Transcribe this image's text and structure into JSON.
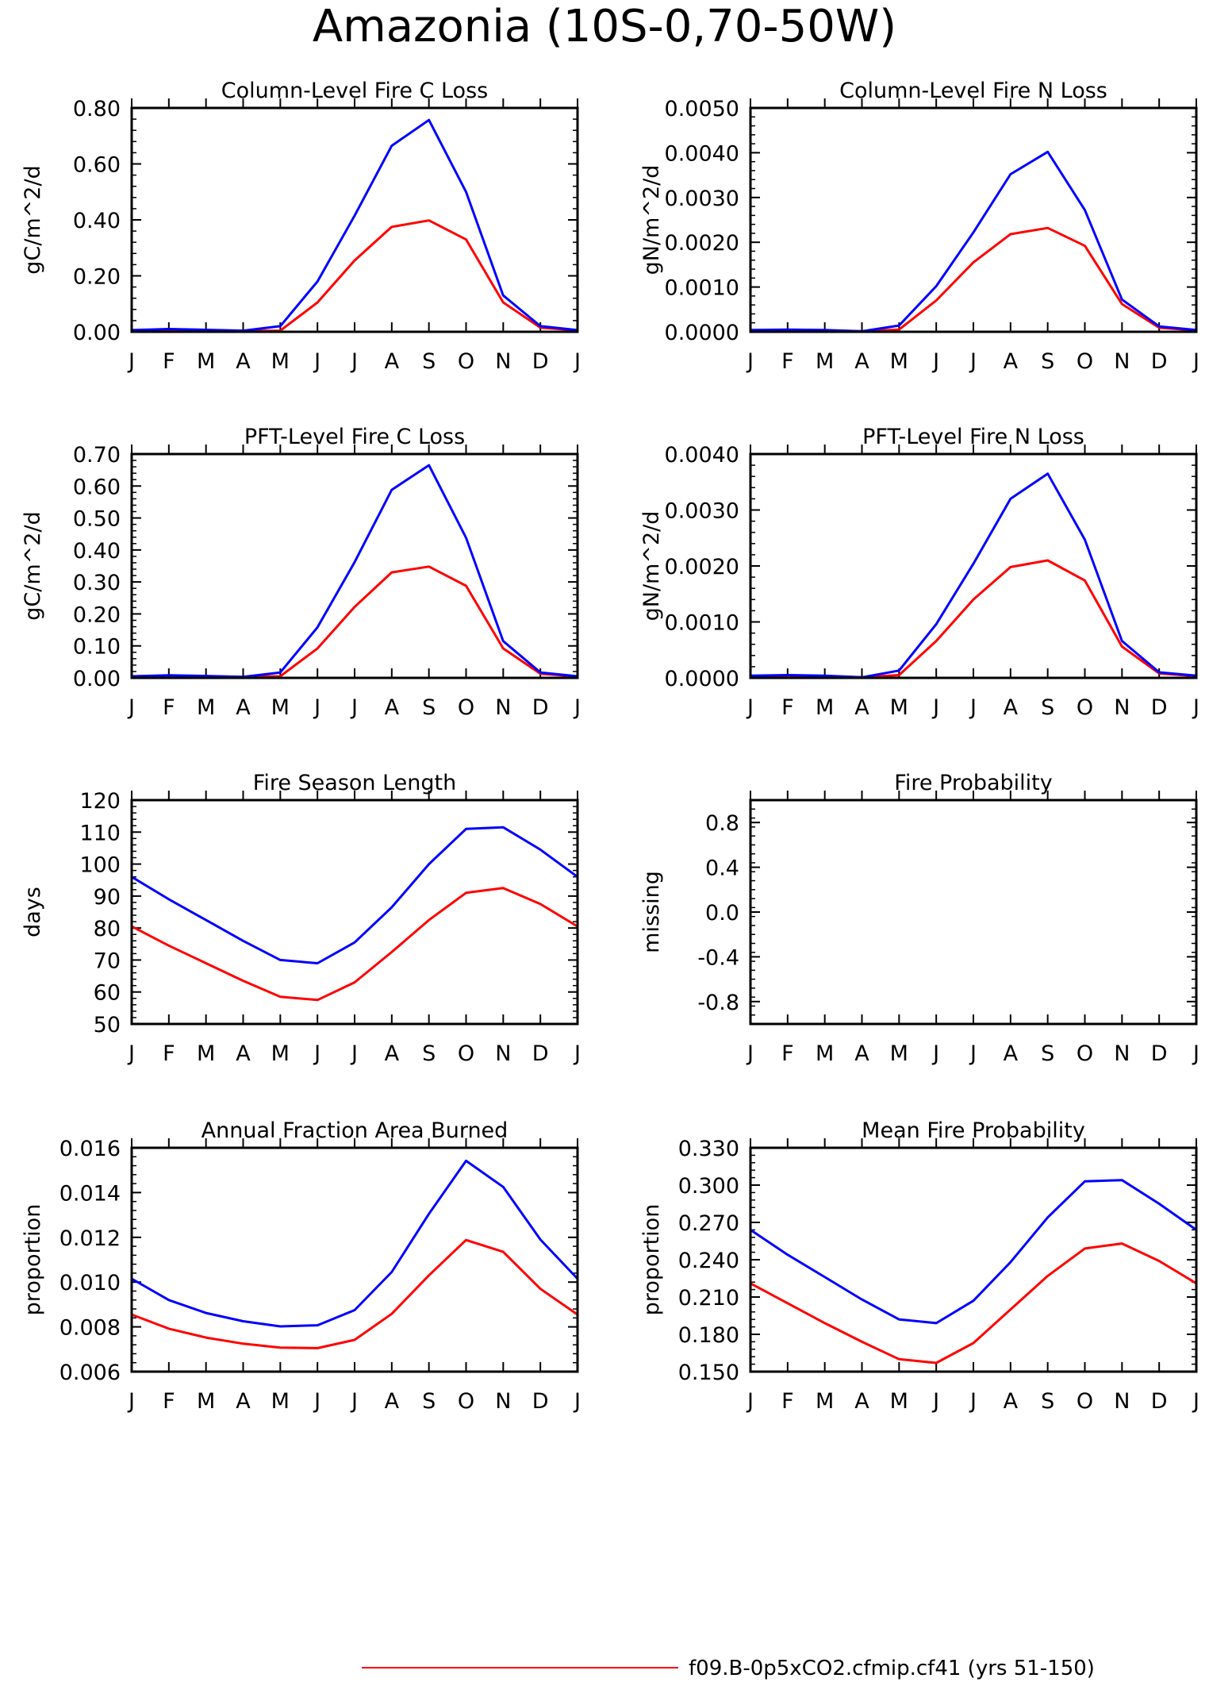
{
  "figure": {
    "title": "Amazonia (10S-0,70-50W)",
    "legend": [
      {
        "label": "f09.B-0p5xCO2.cfmip.cf41 (yrs 51-150)",
        "color": "#ff0000"
      }
    ]
  },
  "colors": {
    "series_a": "#ff0000",
    "series_b": "#0000ff",
    "axes": "#000000"
  },
  "chart_data": [
    {
      "type": "line",
      "title": "Column-Level Fire C Loss",
      "ylabel": "gC/m^2/d",
      "categories": [
        "J",
        "F",
        "M",
        "A",
        "M",
        "J",
        "J",
        "A",
        "S",
        "O",
        "N",
        "D",
        "J"
      ],
      "ylim": [
        0,
        0.8
      ],
      "yticks": [
        0,
        0.2,
        0.4,
        0.6,
        0.8
      ],
      "yticklabels": [
        "0.00",
        "0.20",
        "0.40",
        "0.60",
        "0.80"
      ],
      "series": [
        {
          "color": "#ff0000",
          "values": [
            0.005,
            0.008,
            0.006,
            0.003,
            0.004,
            0.105,
            0.255,
            0.375,
            0.398,
            0.33,
            0.105,
            0.015,
            0.005
          ]
        },
        {
          "color": "#0000ff",
          "values": [
            0.006,
            0.01,
            0.007,
            0.004,
            0.02,
            0.18,
            0.415,
            0.665,
            0.757,
            0.5,
            0.13,
            0.02,
            0.006
          ]
        }
      ]
    },
    {
      "type": "line",
      "title": "Column-Level Fire N Loss",
      "ylabel": "gN/m^2/d",
      "categories": [
        "J",
        "F",
        "M",
        "A",
        "M",
        "J",
        "J",
        "A",
        "S",
        "O",
        "N",
        "D",
        "J"
      ],
      "ylim": [
        0,
        0.005
      ],
      "yticks": [
        0,
        0.001,
        0.002,
        0.003,
        0.004,
        0.005
      ],
      "yticklabels": [
        "0.0000",
        "0.0010",
        "0.0020",
        "0.0030",
        "0.0040",
        "0.0050"
      ],
      "series": [
        {
          "color": "#ff0000",
          "values": [
            3e-05,
            4e-05,
            3e-05,
            1e-05,
            5e-05,
            0.0007,
            0.00155,
            0.00218,
            0.00232,
            0.00192,
            0.00062,
            9e-05,
            3e-05
          ]
        },
        {
          "color": "#0000ff",
          "values": [
            4e-05,
            5e-05,
            4e-05,
            1e-05,
            0.00014,
            0.00102,
            0.00222,
            0.00352,
            0.00402,
            0.00272,
            0.00072,
            0.00012,
            4e-05
          ]
        }
      ]
    },
    {
      "type": "line",
      "title": "PFT-Level Fire C Loss",
      "ylabel": "gC/m^2/d",
      "categories": [
        "J",
        "F",
        "M",
        "A",
        "M",
        "J",
        "J",
        "A",
        "S",
        "O",
        "N",
        "D",
        "J"
      ],
      "ylim": [
        0,
        0.7
      ],
      "yticks": [
        0,
        0.1,
        0.2,
        0.3,
        0.4,
        0.5,
        0.6,
        0.7
      ],
      "yticklabels": [
        "0.00",
        "0.10",
        "0.20",
        "0.30",
        "0.40",
        "0.50",
        "0.60",
        "0.70"
      ],
      "series": [
        {
          "color": "#ff0000",
          "values": [
            0.004,
            0.007,
            0.005,
            0.003,
            0.005,
            0.092,
            0.222,
            0.33,
            0.348,
            0.288,
            0.092,
            0.013,
            0.004
          ]
        },
        {
          "color": "#0000ff",
          "values": [
            0.005,
            0.008,
            0.006,
            0.003,
            0.017,
            0.158,
            0.362,
            0.588,
            0.665,
            0.438,
            0.115,
            0.017,
            0.005
          ]
        }
      ]
    },
    {
      "type": "line",
      "title": "PFT-Level Fire N Loss",
      "ylabel": "gN/m^2/d",
      "categories": [
        "J",
        "F",
        "M",
        "A",
        "M",
        "J",
        "J",
        "A",
        "S",
        "O",
        "N",
        "D",
        "J"
      ],
      "ylim": [
        0,
        0.004
      ],
      "yticks": [
        0,
        0.001,
        0.002,
        0.003,
        0.004
      ],
      "yticklabels": [
        "0.0000",
        "0.0010",
        "0.0020",
        "0.0030",
        "0.0040"
      ],
      "series": [
        {
          "color": "#ff0000",
          "values": [
            3e-05,
            4e-05,
            3e-05,
            1e-05,
            5e-05,
            0.00066,
            0.0014,
            0.00198,
            0.0021,
            0.00174,
            0.00056,
            8e-05,
            3e-05
          ]
        },
        {
          "color": "#0000ff",
          "values": [
            4e-05,
            5e-05,
            4e-05,
            1e-05,
            0.00013,
            0.00096,
            0.00204,
            0.0032,
            0.00365,
            0.00247,
            0.00066,
            0.0001,
            4e-05
          ]
        }
      ]
    },
    {
      "type": "line",
      "title": "Fire Season Length",
      "ylabel": "days",
      "categories": [
        "J",
        "F",
        "M",
        "A",
        "M",
        "J",
        "J",
        "A",
        "S",
        "O",
        "N",
        "D",
        "J"
      ],
      "ylim": [
        50,
        120
      ],
      "yticks": [
        50,
        60,
        70,
        80,
        90,
        100,
        110,
        120
      ],
      "yticklabels": [
        "50",
        "60",
        "70",
        "80",
        "90",
        "100",
        "110",
        "120"
      ],
      "series": [
        {
          "color": "#ff0000",
          "values": [
            80.5,
            74.5,
            69.0,
            63.5,
            58.5,
            57.5,
            63.0,
            72.5,
            82.5,
            91.0,
            92.5,
            87.5,
            80.5
          ]
        },
        {
          "color": "#0000ff",
          "values": [
            96.0,
            89.0,
            82.5,
            76.0,
            70.0,
            69.0,
            75.5,
            86.5,
            100.0,
            111.0,
            111.5,
            104.5,
            96.0
          ]
        }
      ]
    },
    {
      "type": "line",
      "title": "Fire Probability",
      "ylabel": "missing",
      "categories": [
        "J",
        "F",
        "M",
        "A",
        "M",
        "J",
        "J",
        "A",
        "S",
        "O",
        "N",
        "D",
        "J"
      ],
      "ylim": [
        -1,
        1
      ],
      "yticks": [
        -0.8,
        -0.4,
        0,
        0.4,
        0.8
      ],
      "yticklabels": [
        "-0.8",
        "-0.4",
        "0.0",
        "0.4",
        "0.8"
      ],
      "series": []
    },
    {
      "type": "line",
      "title": "Annual Fraction Area Burned",
      "ylabel": "proportion",
      "categories": [
        "J",
        "F",
        "M",
        "A",
        "M",
        "J",
        "J",
        "A",
        "S",
        "O",
        "N",
        "D",
        "J"
      ],
      "ylim": [
        0.006,
        0.016
      ],
      "yticks": [
        0.006,
        0.008,
        0.01,
        0.012,
        0.014,
        0.016
      ],
      "yticklabels": [
        "0.006",
        "0.008",
        "0.010",
        "0.012",
        "0.014",
        "0.016"
      ],
      "series": [
        {
          "color": "#ff0000",
          "values": [
            0.00855,
            0.00792,
            0.00752,
            0.00725,
            0.00707,
            0.00705,
            0.00742,
            0.00858,
            0.0103,
            0.01188,
            0.01135,
            0.0097,
            0.00855
          ]
        },
        {
          "color": "#0000ff",
          "values": [
            0.01015,
            0.0092,
            0.00862,
            0.00825,
            0.00802,
            0.00807,
            0.00875,
            0.01045,
            0.01305,
            0.01542,
            0.01425,
            0.0119,
            0.01015
          ]
        }
      ]
    },
    {
      "type": "line",
      "title": "Mean Fire Probability",
      "ylabel": "proportion",
      "categories": [
        "J",
        "F",
        "M",
        "A",
        "M",
        "J",
        "J",
        "A",
        "S",
        "O",
        "N",
        "D",
        "J"
      ],
      "ylim": [
        0.15,
        0.33
      ],
      "yticks": [
        0.15,
        0.18,
        0.21,
        0.24,
        0.27,
        0.3,
        0.33
      ],
      "yticklabels": [
        "0.150",
        "0.180",
        "0.210",
        "0.240",
        "0.270",
        "0.300",
        "0.330"
      ],
      "series": [
        {
          "color": "#ff0000",
          "values": [
            0.221,
            0.205,
            0.189,
            0.174,
            0.16,
            0.157,
            0.173,
            0.2,
            0.227,
            0.249,
            0.253,
            0.239,
            0.221
          ]
        },
        {
          "color": "#0000ff",
          "values": [
            0.264,
            0.244,
            0.226,
            0.208,
            0.192,
            0.189,
            0.207,
            0.238,
            0.274,
            0.303,
            0.304,
            0.285,
            0.264
          ]
        }
      ]
    }
  ]
}
